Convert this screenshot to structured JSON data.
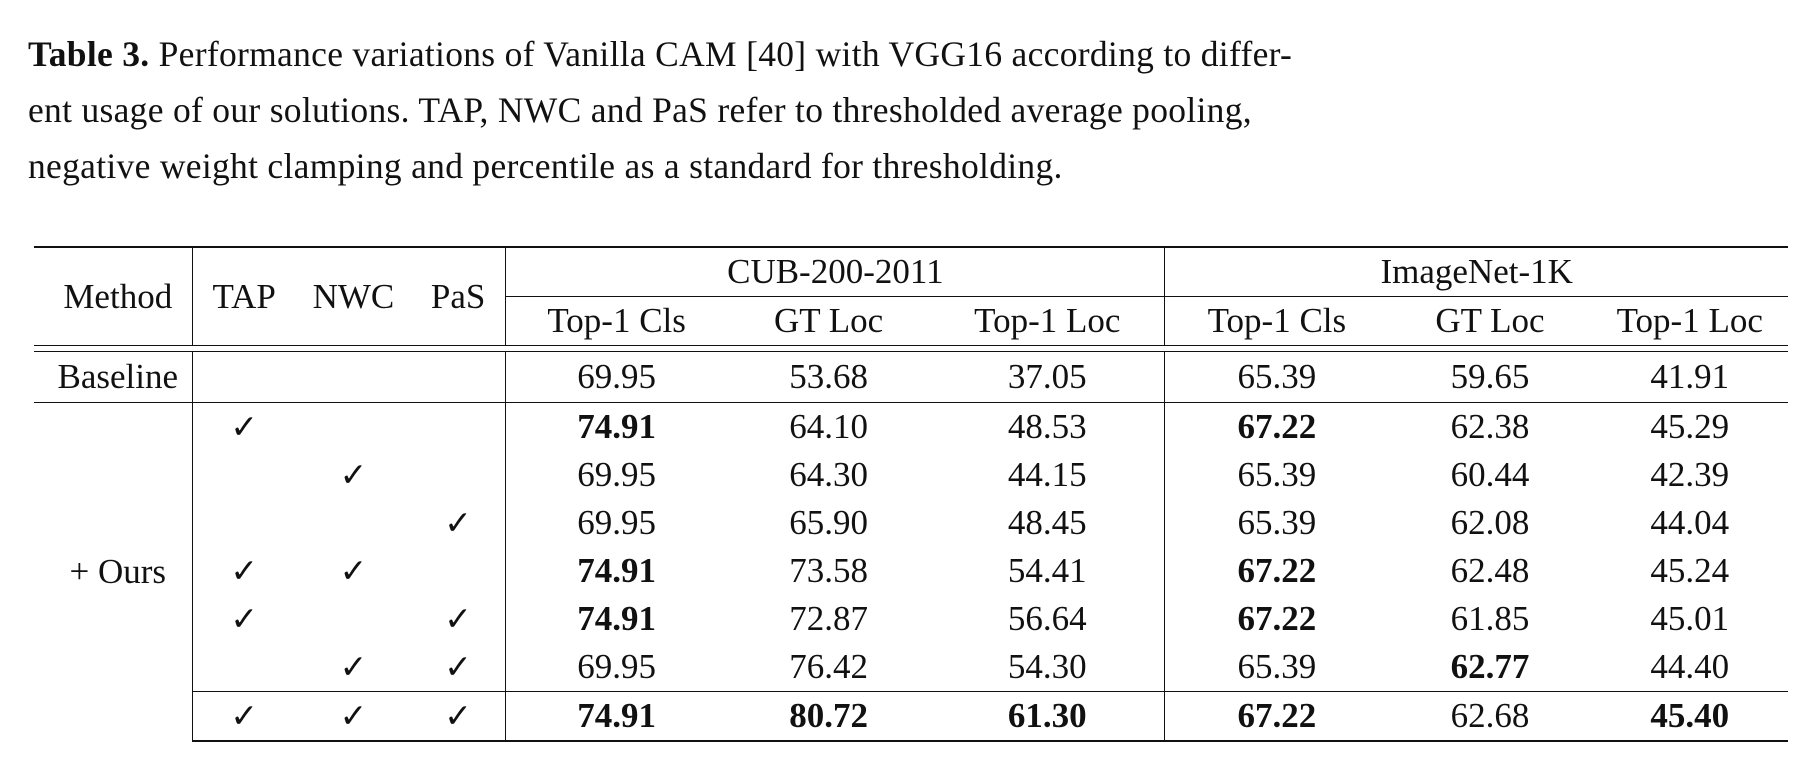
{
  "caption": {
    "label": "Table 3.",
    "line1": " Performance variations of Vanilla CAM [40] with VGG16 according to differ-",
    "line2": "ent usage of our solutions. TAP, NWC and PaS refer to thresholded average pooling,",
    "line3": "negative weight clamping and percentile as a standard for thresholding."
  },
  "header": {
    "method": "Method",
    "tap": "TAP",
    "nwc": "NWC",
    "pas": "PaS",
    "dataset1": "CUB-200-2011",
    "dataset2": "ImageNet-1K",
    "cols": [
      "Top-1 Cls",
      "GT Loc",
      "Top-1 Loc",
      "Top-1 Cls",
      "GT Loc",
      "Top-1 Loc"
    ]
  },
  "check_mark": "✓",
  "baseline": {
    "label": "Baseline",
    "values": [
      "69.95",
      "53.68",
      "37.05",
      "65.39",
      "59.65",
      "41.91"
    ]
  },
  "ours_label": "+ Ours",
  "rows": [
    {
      "tap": "✓",
      "nwc": "",
      "pas": "",
      "values": [
        "74.91",
        "64.10",
        "48.53",
        "67.22",
        "62.38",
        "45.29"
      ]
    },
    {
      "tap": "",
      "nwc": "✓",
      "pas": "",
      "values": [
        "69.95",
        "64.30",
        "44.15",
        "65.39",
        "60.44",
        "42.39"
      ]
    },
    {
      "tap": "",
      "nwc": "",
      "pas": "✓",
      "values": [
        "69.95",
        "65.90",
        "48.45",
        "65.39",
        "62.08",
        "44.04"
      ]
    },
    {
      "tap": "✓",
      "nwc": "✓",
      "pas": "",
      "values": [
        "74.91",
        "73.58",
        "54.41",
        "67.22",
        "62.48",
        "45.24"
      ]
    },
    {
      "tap": "✓",
      "nwc": "",
      "pas": "✓",
      "values": [
        "74.91",
        "72.87",
        "56.64",
        "67.22",
        "61.85",
        "45.01"
      ]
    },
    {
      "tap": "",
      "nwc": "✓",
      "pas": "✓",
      "values": [
        "69.95",
        "76.42",
        "54.30",
        "65.39",
        "62.77",
        "44.40"
      ]
    },
    {
      "tap": "✓",
      "nwc": "✓",
      "pas": "✓",
      "values": [
        "74.91",
        "80.72",
        "61.30",
        "67.22",
        "62.68",
        "45.40"
      ]
    }
  ],
  "bold_cells": [
    [
      0,
      0
    ],
    [
      0,
      3
    ],
    [
      3,
      0
    ],
    [
      3,
      3
    ],
    [
      4,
      0
    ],
    [
      4,
      3
    ],
    [
      5,
      4
    ],
    [
      6,
      0
    ],
    [
      6,
      1
    ],
    [
      6,
      2
    ],
    [
      6,
      3
    ],
    [
      6,
      5
    ]
  ]
}
